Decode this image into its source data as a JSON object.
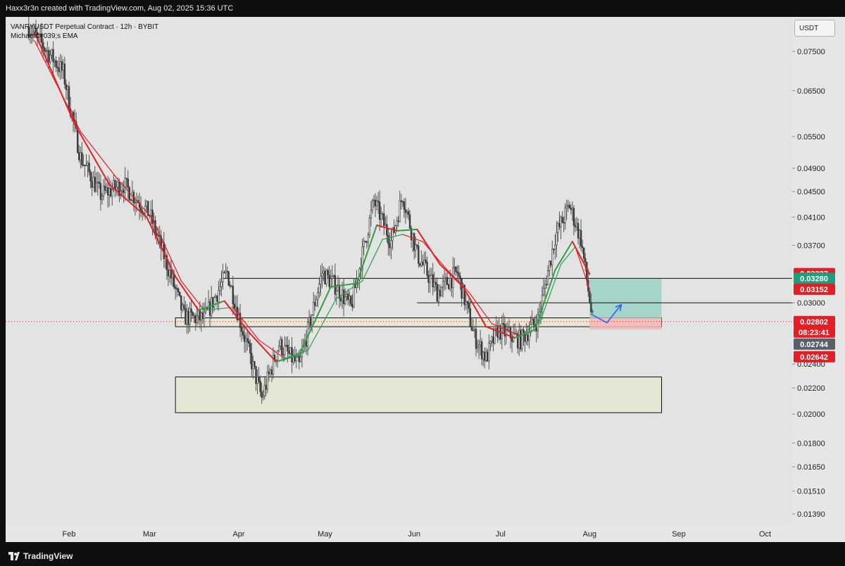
{
  "header": {
    "credit": "Haxx3r3n created with TradingView.com, Aug 02, 2025 15:36 UTC"
  },
  "legend": {
    "symbol": "VANRYUSDT Perpetual Contract · 12h · BYBIT",
    "indicator": "Michael&#039;s EMA"
  },
  "price_axis": {
    "currency": "USDT"
  },
  "footer": {
    "brand": "TradingView"
  },
  "colors": {
    "background": "#e3e3e3",
    "candle": "#555555",
    "ema_red": "#e31e24",
    "ema_green": "#2f9e44",
    "projection_arrow": "#2962ff",
    "target_zone": "#8fcfc2",
    "stop_zone": "#f2b7b7",
    "support_box": "#e6e6d4"
  },
  "chart_data": {
    "type": "candlestick",
    "symbol": "VANRYUSDT",
    "interval": "12h",
    "exchange": "BYBIT",
    "y_scale": "log",
    "ylim": [
      0.0128,
      0.083
    ],
    "y_ticks": [
      "0.07500",
      "0.06500",
      "0.05500",
      "0.04900",
      "0.04500",
      "0.04100",
      "0.03700",
      "0.03000",
      "0.02400",
      "0.02200",
      "0.02000",
      "0.01800",
      "0.01650",
      "0.01510",
      "0.01390"
    ],
    "x_ticks": [
      "Feb",
      "Mar",
      "Apr",
      "May",
      "Jun",
      "Jul",
      "Aug",
      "Sep",
      "Oct"
    ],
    "x_tick_dates": [
      "2025-02-01",
      "2025-03-01",
      "2025-04-01",
      "2025-05-01",
      "2025-06-01",
      "2025-07-01",
      "2025-08-01",
      "2025-09-01",
      "2025-10-01"
    ],
    "price_tags": [
      {
        "label": "0.03337",
        "value": 0.03337,
        "color": "#e31e24"
      },
      {
        "label": "0.03280",
        "value": 0.0328,
        "color": "#1f9e7c"
      },
      {
        "label": "0.03152",
        "value": 0.03152,
        "color": "#e31e24"
      },
      {
        "label": "0.02802",
        "value": 0.02802,
        "color": "#e31e24"
      },
      {
        "label": "08:23:41",
        "value": 0.02745,
        "color": "#e31e24"
      },
      {
        "label": "0.02744",
        "value": 0.02744,
        "color": "#5a5f6b"
      },
      {
        "label": "0.02642",
        "value": 0.02642,
        "color": "#e31e24"
      }
    ],
    "current_price": 0.02802,
    "horizontal_levels": [
      {
        "start": "2025-03-26",
        "end": "2025-10-31",
        "value": 0.0328
      },
      {
        "start": "2025-06-02",
        "end": "2025-10-31",
        "value": 0.03
      }
    ],
    "zones": [
      {
        "name": "support-upper",
        "start": "2025-03-10",
        "end": "2025-08-26",
        "top": 0.0284,
        "bottom": 0.0275
      },
      {
        "name": "support-lower",
        "start": "2025-03-10",
        "end": "2025-08-26",
        "top": 0.0229,
        "bottom": 0.0201
      }
    ],
    "position": {
      "start": "2025-08-01",
      "end": "2025-08-26",
      "entry": 0.0284,
      "target": 0.0328,
      "stop": 0.0275
    },
    "projection_path": [
      {
        "date": "2025-08-02",
        "value": 0.0287
      },
      {
        "date": "2025-08-07",
        "value": 0.0279
      },
      {
        "date": "2025-08-12",
        "value": 0.0298
      }
    ],
    "price_path": [
      {
        "date": "2025-01-18",
        "value": 0.082
      },
      {
        "date": "2025-01-30",
        "value": 0.0695
      },
      {
        "date": "2025-02-05",
        "value": 0.051
      },
      {
        "date": "2025-02-12",
        "value": 0.0445
      },
      {
        "date": "2025-02-20",
        "value": 0.0462
      },
      {
        "date": "2025-03-01",
        "value": 0.0415
      },
      {
        "date": "2025-03-08",
        "value": 0.0335
      },
      {
        "date": "2025-03-13",
        "value": 0.0285
      },
      {
        "date": "2025-03-20",
        "value": 0.0283
      },
      {
        "date": "2025-03-28",
        "value": 0.0335
      },
      {
        "date": "2025-04-02",
        "value": 0.0275
      },
      {
        "date": "2025-04-09",
        "value": 0.0212
      },
      {
        "date": "2025-04-15",
        "value": 0.0258
      },
      {
        "date": "2025-04-22",
        "value": 0.0238
      },
      {
        "date": "2025-04-30",
        "value": 0.0335
      },
      {
        "date": "2025-05-05",
        "value": 0.0318
      },
      {
        "date": "2025-05-10",
        "value": 0.0295
      },
      {
        "date": "2025-05-18",
        "value": 0.0435
      },
      {
        "date": "2025-05-24",
        "value": 0.0375
      },
      {
        "date": "2025-05-28",
        "value": 0.0445
      },
      {
        "date": "2025-06-02",
        "value": 0.0358
      },
      {
        "date": "2025-06-09",
        "value": 0.0312
      },
      {
        "date": "2025-06-16",
        "value": 0.0335
      },
      {
        "date": "2025-06-22",
        "value": 0.0265
      },
      {
        "date": "2025-06-26",
        "value": 0.0245
      },
      {
        "date": "2025-06-30",
        "value": 0.0272
      },
      {
        "date": "2025-07-08",
        "value": 0.0262
      },
      {
        "date": "2025-07-14",
        "value": 0.0282
      },
      {
        "date": "2025-07-20",
        "value": 0.0382
      },
      {
        "date": "2025-07-25",
        "value": 0.0428
      },
      {
        "date": "2025-07-29",
        "value": 0.0378
      },
      {
        "date": "2025-08-02",
        "value": 0.0281
      }
    ],
    "ema_fast": [
      {
        "date": "2025-01-20",
        "value": 0.0805
      },
      {
        "date": "2025-02-03",
        "value": 0.0575
      },
      {
        "date": "2025-02-15",
        "value": 0.0462
      },
      {
        "date": "2025-02-28",
        "value": 0.041
      },
      {
        "date": "2025-03-10",
        "value": 0.033
      },
      {
        "date": "2025-03-18",
        "value": 0.0292
      },
      {
        "date": "2025-03-27",
        "value": 0.0302
      },
      {
        "date": "2025-04-05",
        "value": 0.0268
      },
      {
        "date": "2025-04-14",
        "value": 0.0242
      },
      {
        "date": "2025-04-22",
        "value": 0.0248
      },
      {
        "date": "2025-05-03",
        "value": 0.0318
      },
      {
        "date": "2025-05-12",
        "value": 0.0322
      },
      {
        "date": "2025-05-19",
        "value": 0.0398
      },
      {
        "date": "2025-05-26",
        "value": 0.039
      },
      {
        "date": "2025-06-02",
        "value": 0.0392
      },
      {
        "date": "2025-06-10",
        "value": 0.0345
      },
      {
        "date": "2025-06-18",
        "value": 0.0318
      },
      {
        "date": "2025-06-26",
        "value": 0.0275
      },
      {
        "date": "2025-07-06",
        "value": 0.0264
      },
      {
        "date": "2025-07-13",
        "value": 0.0272
      },
      {
        "date": "2025-07-20",
        "value": 0.0338
      },
      {
        "date": "2025-07-26",
        "value": 0.0375
      },
      {
        "date": "2025-08-01",
        "value": 0.0333
      }
    ],
    "ema_slow": [
      {
        "date": "2025-01-20",
        "value": 0.078
      },
      {
        "date": "2025-02-05",
        "value": 0.056
      },
      {
        "date": "2025-02-18",
        "value": 0.047
      },
      {
        "date": "2025-03-02",
        "value": 0.0408
      },
      {
        "date": "2025-03-12",
        "value": 0.0325
      },
      {
        "date": "2025-03-20",
        "value": 0.0292
      },
      {
        "date": "2025-03-30",
        "value": 0.0295
      },
      {
        "date": "2025-04-08",
        "value": 0.0262
      },
      {
        "date": "2025-04-17",
        "value": 0.0245
      },
      {
        "date": "2025-04-25",
        "value": 0.0252
      },
      {
        "date": "2025-05-05",
        "value": 0.0305
      },
      {
        "date": "2025-05-14",
        "value": 0.0325
      },
      {
        "date": "2025-05-21",
        "value": 0.0378
      },
      {
        "date": "2025-05-28",
        "value": 0.0385
      },
      {
        "date": "2025-06-04",
        "value": 0.0375
      },
      {
        "date": "2025-06-12",
        "value": 0.034
      },
      {
        "date": "2025-06-20",
        "value": 0.0312
      },
      {
        "date": "2025-06-28",
        "value": 0.0278
      },
      {
        "date": "2025-07-08",
        "value": 0.0266
      },
      {
        "date": "2025-07-15",
        "value": 0.0282
      },
      {
        "date": "2025-07-22",
        "value": 0.0345
      },
      {
        "date": "2025-07-27",
        "value": 0.0368
      },
      {
        "date": "2025-08-01",
        "value": 0.0315
      }
    ]
  }
}
